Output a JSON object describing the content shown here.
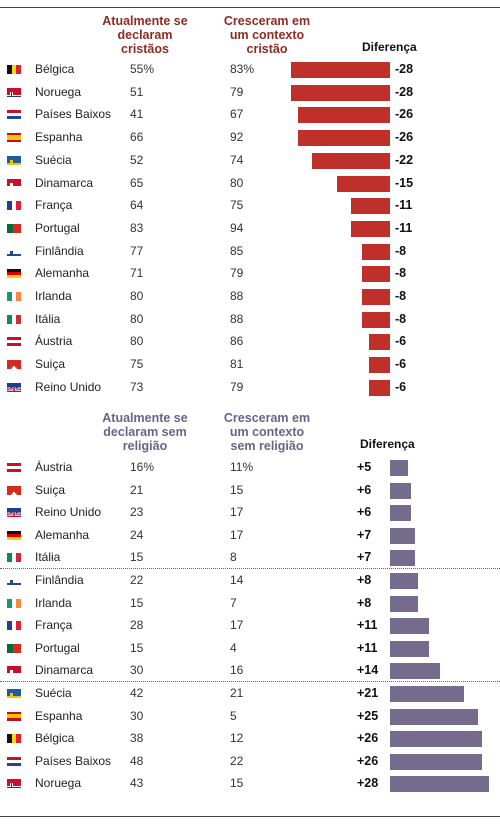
{
  "chart_data": [
    {
      "type": "bar",
      "headers": {
        "current": "Atualmente se declaram cristãos",
        "raised": "Cresceram em um contexto cristão",
        "diff": "Diferença"
      },
      "colors": {
        "bar": "#c0302a",
        "header": "#8f2b23"
      },
      "percent_suffix_first_row": "%",
      "rows": [
        {
          "country": "Bélgica",
          "flag": "belgium",
          "current": 55,
          "raised": 83,
          "diff": -28
        },
        {
          "country": "Noruega",
          "flag": "norway",
          "current": 51,
          "raised": 79,
          "diff": -28
        },
        {
          "country": "Países Baixos",
          "flag": "netherlands",
          "current": 41,
          "raised": 67,
          "diff": -26
        },
        {
          "country": "Espanha",
          "flag": "spain",
          "current": 66,
          "raised": 92,
          "diff": -26
        },
        {
          "country": "Suécia",
          "flag": "sweden",
          "current": 52,
          "raised": 74,
          "diff": -22
        },
        {
          "country": "Dinamarca",
          "flag": "denmark",
          "current": 65,
          "raised": 80,
          "diff": -15
        },
        {
          "country": "França",
          "flag": "france",
          "current": 64,
          "raised": 75,
          "diff": -11
        },
        {
          "country": "Portugal",
          "flag": "portugal",
          "current": 83,
          "raised": 94,
          "diff": -11
        },
        {
          "country": "Finlândia",
          "flag": "finland",
          "current": 77,
          "raised": 85,
          "diff": -8
        },
        {
          "country": "Alemanha",
          "flag": "germany",
          "current": 71,
          "raised": 79,
          "diff": -8
        },
        {
          "country": "Irlanda",
          "flag": "ireland",
          "current": 80,
          "raised": 88,
          "diff": -8
        },
        {
          "country": "Itália",
          "flag": "italy",
          "current": 80,
          "raised": 88,
          "diff": -8
        },
        {
          "country": "Áustria",
          "flag": "austria",
          "current": 80,
          "raised": 86,
          "diff": -6
        },
        {
          "country": "Suiça",
          "flag": "switzerland",
          "current": 75,
          "raised": 81,
          "diff": -6
        },
        {
          "country": "Reino Unido",
          "flag": "uk",
          "current": 73,
          "raised": 79,
          "diff": -6
        }
      ]
    },
    {
      "type": "bar",
      "headers": {
        "current": "Atualmente se declaram sem religião",
        "raised": "Cresceram em um contexto sem religião",
        "diff": "Diferença"
      },
      "colors": {
        "bar": "#756b8d",
        "header": "#6b6385"
      },
      "percent_suffix_first_row": "%",
      "rows": [
        {
          "country": "Áustria",
          "flag": "austria",
          "current": 16,
          "raised": 11,
          "diff": 5
        },
        {
          "country": "Suiça",
          "flag": "switzerland",
          "current": 21,
          "raised": 15,
          "diff": 6
        },
        {
          "country": "Reino Unido",
          "flag": "uk",
          "current": 23,
          "raised": 17,
          "diff": 6
        },
        {
          "country": "Alemanha",
          "flag": "germany",
          "current": 24,
          "raised": 17,
          "diff": 7
        },
        {
          "country": "Itália",
          "flag": "italy",
          "current": 15,
          "raised": 8,
          "diff": 7
        },
        {
          "country": "Finlândia",
          "flag": "finland",
          "current": 22,
          "raised": 14,
          "diff": 8
        },
        {
          "country": "Irlanda",
          "flag": "ireland",
          "current": 15,
          "raised": 7,
          "diff": 8
        },
        {
          "country": "França",
          "flag": "france",
          "current": 28,
          "raised": 17,
          "diff": 11
        },
        {
          "country": "Portugal",
          "flag": "portugal",
          "current": 15,
          "raised": 4,
          "diff": 11
        },
        {
          "country": "Dinamarca",
          "flag": "denmark",
          "current": 30,
          "raised": 16,
          "diff": 14
        },
        {
          "country": "Suécia",
          "flag": "sweden",
          "current": 42,
          "raised": 21,
          "diff": 21
        },
        {
          "country": "Espanha",
          "flag": "spain",
          "current": 30,
          "raised": 5,
          "diff": 25
        },
        {
          "country": "Bélgica",
          "flag": "belgium",
          "current": 38,
          "raised": 12,
          "diff": 26
        },
        {
          "country": "Países Baixos",
          "flag": "netherlands",
          "current": 48,
          "raised": 22,
          "diff": 26
        },
        {
          "country": "Noruega",
          "flag": "norway",
          "current": 43,
          "raised": 15,
          "diff": 28
        }
      ],
      "group_breaks_after": [
        4,
        9
      ]
    }
  ],
  "flags": {
    "belgium": {
      "dir": "v",
      "colors": [
        "#111111",
        "#f5d327",
        "#e0202a"
      ]
    },
    "norway": {
      "dir": "cross",
      "colors": [
        "#c8102e",
        "#ffffff",
        "#1b3f8b"
      ]
    },
    "netherlands": {
      "dir": "h",
      "colors": [
        "#c8102e",
        "#ffffff",
        "#1e4598"
      ]
    },
    "spain": {
      "dir": "h3",
      "colors": [
        "#c60b1e",
        "#ffc400",
        "#c60b1e"
      ]
    },
    "sweden": {
      "dir": "cross",
      "colors": [
        "#1f5aa6",
        "#f5c400",
        "#f5c400"
      ]
    },
    "denmark": {
      "dir": "cross",
      "colors": [
        "#c8102e",
        "#ffffff",
        "#ffffff"
      ]
    },
    "france": {
      "dir": "v",
      "colors": [
        "#1e3f94",
        "#ffffff",
        "#e0202a"
      ]
    },
    "portugal": {
      "dir": "v2",
      "colors": [
        "#046a38",
        "#da291c"
      ]
    },
    "finland": {
      "dir": "cross",
      "colors": [
        "#ffffff",
        "#1f4a8f",
        "#1f4a8f"
      ]
    },
    "germany": {
      "dir": "h",
      "colors": [
        "#111111",
        "#dd0000",
        "#ffce00"
      ]
    },
    "ireland": {
      "dir": "v",
      "colors": [
        "#169b62",
        "#ffffff",
        "#ff883e"
      ]
    },
    "italy": {
      "dir": "v",
      "colors": [
        "#009246",
        "#ffffff",
        "#ce2b37"
      ]
    },
    "austria": {
      "dir": "h",
      "colors": [
        "#c8102e",
        "#ffffff",
        "#c8102e"
      ]
    },
    "switzerland": {
      "dir": "swiss",
      "colors": [
        "#d52b1e",
        "#ffffff"
      ]
    },
    "uk": {
      "dir": "uk",
      "colors": [
        "#1f3f8b",
        "#ffffff",
        "#c8102e"
      ]
    }
  }
}
